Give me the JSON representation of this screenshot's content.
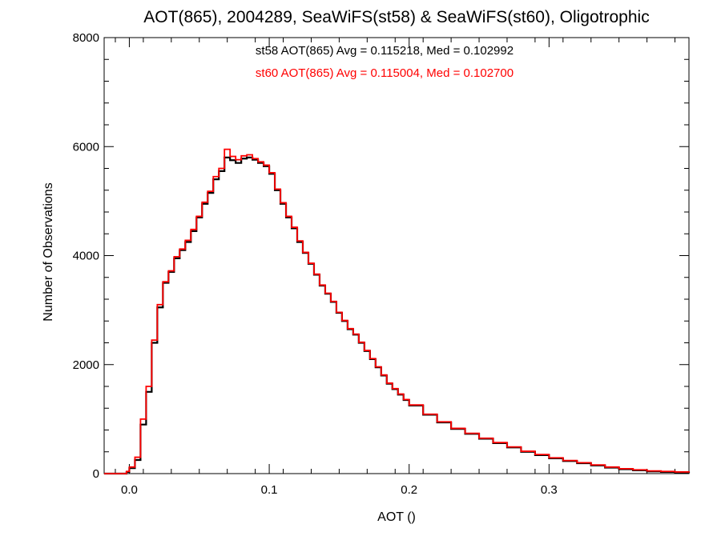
{
  "chart_data": {
    "type": "line",
    "step": true,
    "title": "AOT(865), 2004289, SeaWiFS(st58) & SeaWiFS(st60), Oligotrophic",
    "xlabel": "AOT ()",
    "ylabel": "Number of Observations",
    "xlim": [
      -0.018,
      0.4
    ],
    "ylim": [
      0,
      8000
    ],
    "xticks": [
      0.0,
      0.1,
      0.2,
      0.3
    ],
    "xtick_labels": [
      "0.0",
      "0.1",
      "0.2",
      "0.3"
    ],
    "yticks": [
      0,
      2000,
      4000,
      6000,
      8000
    ],
    "ytick_labels": [
      "0",
      "2000",
      "4000",
      "6000",
      "8000"
    ],
    "grid": false,
    "annotations": [
      {
        "text": "st58 AOT(865) Avg = 0.115218, Med = 0.102992",
        "color": "#000000"
      },
      {
        "text": "st60 AOT(865) Avg = 0.115004, Med = 0.102700",
        "color": "#ff0000"
      }
    ],
    "series": [
      {
        "color": "#000000",
        "x": [
          -0.018,
          -0.002,
          0.0,
          0.004,
          0.008,
          0.012,
          0.016,
          0.02,
          0.024,
          0.028,
          0.032,
          0.036,
          0.04,
          0.044,
          0.048,
          0.052,
          0.056,
          0.06,
          0.064,
          0.068,
          0.072,
          0.076,
          0.08,
          0.084,
          0.088,
          0.092,
          0.096,
          0.1,
          0.104,
          0.108,
          0.112,
          0.116,
          0.12,
          0.124,
          0.128,
          0.132,
          0.136,
          0.14,
          0.144,
          0.148,
          0.152,
          0.156,
          0.16,
          0.164,
          0.168,
          0.172,
          0.176,
          0.18,
          0.184,
          0.188,
          0.192,
          0.196,
          0.2,
          0.21,
          0.22,
          0.23,
          0.24,
          0.25,
          0.26,
          0.27,
          0.28,
          0.29,
          0.3,
          0.31,
          0.32,
          0.33,
          0.34,
          0.35,
          0.36,
          0.37,
          0.38,
          0.39,
          0.4
        ],
        "values": [
          0,
          30,
          100,
          250,
          900,
          1500,
          2400,
          3050,
          3500,
          3700,
          3950,
          4100,
          4250,
          4450,
          4700,
          4950,
          5150,
          5400,
          5550,
          5800,
          5750,
          5700,
          5780,
          5800,
          5760,
          5700,
          5640,
          5500,
          5200,
          4950,
          4700,
          4500,
          4250,
          4050,
          3850,
          3650,
          3450,
          3300,
          3150,
          2950,
          2800,
          2650,
          2550,
          2400,
          2250,
          2100,
          1950,
          1800,
          1650,
          1550,
          1450,
          1350,
          1250,
          1080,
          940,
          820,
          730,
          640,
          560,
          480,
          400,
          340,
          280,
          230,
          190,
          150,
          110,
          80,
          60,
          40,
          30,
          20,
          10
        ]
      },
      {
        "color": "#ff0000",
        "x": [
          -0.018,
          -0.002,
          0.0,
          0.004,
          0.008,
          0.012,
          0.016,
          0.02,
          0.024,
          0.028,
          0.032,
          0.036,
          0.04,
          0.044,
          0.048,
          0.052,
          0.056,
          0.06,
          0.064,
          0.068,
          0.072,
          0.076,
          0.08,
          0.084,
          0.088,
          0.092,
          0.096,
          0.1,
          0.104,
          0.108,
          0.112,
          0.116,
          0.12,
          0.124,
          0.128,
          0.132,
          0.136,
          0.14,
          0.144,
          0.148,
          0.152,
          0.156,
          0.16,
          0.164,
          0.168,
          0.172,
          0.176,
          0.18,
          0.184,
          0.188,
          0.192,
          0.196,
          0.2,
          0.21,
          0.22,
          0.23,
          0.24,
          0.25,
          0.26,
          0.27,
          0.28,
          0.29,
          0.3,
          0.31,
          0.32,
          0.33,
          0.34,
          0.35,
          0.36,
          0.37,
          0.38,
          0.39,
          0.4
        ],
        "values": [
          0,
          40,
          120,
          300,
          1000,
          1600,
          2450,
          3100,
          3520,
          3720,
          3980,
          4120,
          4280,
          4480,
          4720,
          4980,
          5180,
          5450,
          5600,
          5950,
          5820,
          5760,
          5830,
          5850,
          5780,
          5720,
          5660,
          5520,
          5220,
          4970,
          4720,
          4520,
          4270,
          4060,
          3860,
          3660,
          3460,
          3310,
          3160,
          2960,
          2810,
          2660,
          2560,
          2410,
          2260,
          2110,
          1960,
          1810,
          1660,
          1560,
          1460,
          1360,
          1260,
          1090,
          950,
          830,
          740,
          650,
          570,
          490,
          410,
          350,
          290,
          240,
          200,
          160,
          120,
          90,
          70,
          50,
          40,
          30,
          20
        ]
      }
    ]
  }
}
